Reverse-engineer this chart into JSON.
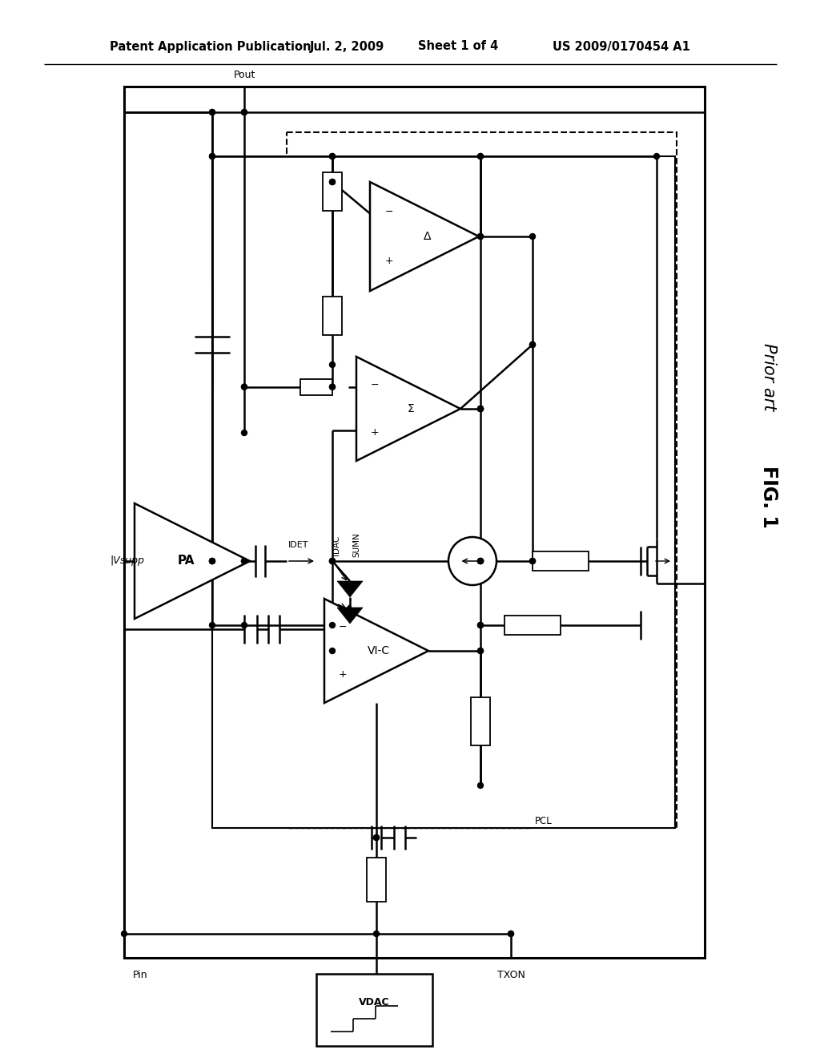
{
  "bg_color": "#ffffff",
  "header_left": "Patent Application Publication",
  "header_mid1": "Jul. 2, 2009",
  "header_mid2": "Sheet 1 of 4",
  "header_right": "US 2009/0170454 A1",
  "fig_label": "FIG. 1",
  "fig_sublabel": "Prior art"
}
